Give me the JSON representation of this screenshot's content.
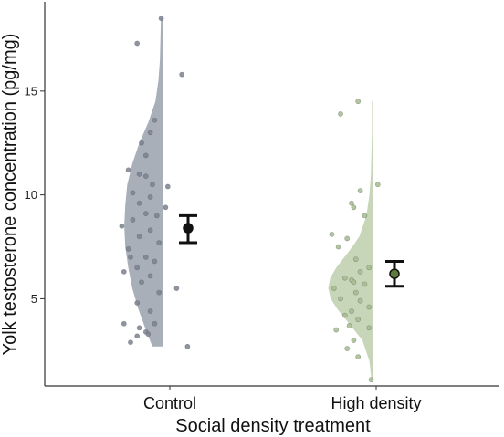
{
  "chart_data": {
    "type": "raincloud",
    "title": "",
    "xlabel": "Social density treatment",
    "ylabel": "Yolk testosterone concentration (pg/mg)",
    "ylim": [
      0.8,
      19.3
    ],
    "yticks": [
      5,
      10,
      15
    ],
    "grid": false,
    "legend": "none",
    "categories": [
      "Control",
      "High density"
    ],
    "groups": [
      {
        "category": "Control",
        "fill_color": "#a8afb8",
        "point_color": "#7a8290",
        "mean_color": "#111111",
        "mean": 8.4,
        "ci_low": 7.7,
        "ci_high": 9.0,
        "density_range": [
          2.7,
          18.5
        ],
        "density_profile": [
          [
            2.7,
            0.22
          ],
          [
            3.5,
            0.35
          ],
          [
            4.5,
            0.5
          ],
          [
            5.5,
            0.62
          ],
          [
            6.5,
            0.7
          ],
          [
            7.5,
            0.76
          ],
          [
            8.5,
            0.78
          ],
          [
            9.5,
            0.76
          ],
          [
            10.5,
            0.72
          ],
          [
            11.5,
            0.62
          ],
          [
            12.5,
            0.48
          ],
          [
            13.5,
            0.3
          ],
          [
            14.5,
            0.16
          ],
          [
            15.5,
            0.1
          ],
          [
            16.5,
            0.07
          ],
          [
            17.5,
            0.06
          ],
          [
            18.5,
            0.05
          ]
        ],
        "points": [
          [
            -0.05,
            18.5
          ],
          [
            -0.6,
            17.3
          ],
          [
            0.42,
            15.8
          ],
          [
            -0.2,
            13.6
          ],
          [
            -0.3,
            13.0
          ],
          [
            -0.5,
            12.5
          ],
          [
            -0.4,
            11.9
          ],
          [
            -0.8,
            11.2
          ],
          [
            -0.55,
            11.0
          ],
          [
            -0.4,
            10.9
          ],
          [
            -0.25,
            10.5
          ],
          [
            0.1,
            10.4
          ],
          [
            -0.7,
            10.1
          ],
          [
            -0.3,
            9.9
          ],
          [
            -0.55,
            9.6
          ],
          [
            0.05,
            9.4
          ],
          [
            -0.4,
            9.1
          ],
          [
            -0.15,
            9.0
          ],
          [
            -0.7,
            8.8
          ],
          [
            -0.95,
            8.5
          ],
          [
            -0.3,
            8.3
          ],
          [
            -0.55,
            8.0
          ],
          [
            -0.1,
            7.7
          ],
          [
            -0.8,
            7.4
          ],
          [
            -0.4,
            7.0
          ],
          [
            -0.75,
            7.0
          ],
          [
            -0.2,
            6.8
          ],
          [
            -0.6,
            6.5
          ],
          [
            -0.9,
            6.3
          ],
          [
            -0.3,
            6.1
          ],
          [
            -0.5,
            5.8
          ],
          [
            0.3,
            5.5
          ],
          [
            -0.1,
            5.3
          ],
          [
            -0.6,
            4.8
          ],
          [
            -0.3,
            4.4
          ],
          [
            -0.2,
            3.8
          ],
          [
            -0.9,
            3.8
          ],
          [
            -0.55,
            3.6
          ],
          [
            -0.4,
            3.4
          ],
          [
            -0.35,
            3.3
          ],
          [
            -0.6,
            3.2
          ],
          [
            -0.75,
            2.9
          ],
          [
            0.55,
            2.7
          ]
        ]
      },
      {
        "category": "High density",
        "fill_color": "#c7d6b8",
        "point_color": "#a3bc8e",
        "mean_color": "#5e7a3d",
        "mean": 6.2,
        "ci_low": 5.6,
        "ci_high": 6.8,
        "density_range": [
          1.1,
          14.5
        ],
        "density_profile": [
          [
            1.1,
            0.04
          ],
          [
            2.0,
            0.08
          ],
          [
            3.0,
            0.22
          ],
          [
            4.0,
            0.55
          ],
          [
            4.5,
            0.72
          ],
          [
            5.0,
            0.85
          ],
          [
            5.5,
            0.9
          ],
          [
            6.0,
            0.86
          ],
          [
            6.5,
            0.74
          ],
          [
            7.0,
            0.58
          ],
          [
            7.5,
            0.42
          ],
          [
            8.0,
            0.28
          ],
          [
            9.0,
            0.14
          ],
          [
            10.0,
            0.08
          ],
          [
            11.0,
            0.05
          ],
          [
            12.0,
            0.04
          ],
          [
            13.0,
            0.03
          ],
          [
            14.5,
            0.03
          ]
        ],
        "points": [
          [
            -0.35,
            14.5
          ],
          [
            -0.75,
            13.9
          ],
          [
            0.1,
            10.5
          ],
          [
            -0.3,
            10.2
          ],
          [
            -0.5,
            9.6
          ],
          [
            -0.45,
            9.4
          ],
          [
            -0.2,
            9.0
          ],
          [
            -0.95,
            8.1
          ],
          [
            -0.6,
            7.9
          ],
          [
            -0.8,
            7.5
          ],
          [
            -0.4,
            6.9
          ],
          [
            -0.1,
            6.5
          ],
          [
            -0.3,
            6.3
          ],
          [
            -0.65,
            6.0
          ],
          [
            -0.5,
            5.9
          ],
          [
            -0.45,
            5.8
          ],
          [
            -0.2,
            5.7
          ],
          [
            -0.9,
            5.5
          ],
          [
            -0.4,
            5.3
          ],
          [
            -0.75,
            5.0
          ],
          [
            -0.3,
            4.9
          ],
          [
            -0.1,
            4.6
          ],
          [
            -0.5,
            4.4
          ],
          [
            -0.65,
            4.2
          ],
          [
            -0.35,
            4.0
          ],
          [
            -0.55,
            3.7
          ],
          [
            -0.1,
            3.6
          ],
          [
            -0.85,
            3.5
          ],
          [
            -0.45,
            3.0
          ],
          [
            -0.6,
            2.6
          ],
          [
            -0.35,
            2.2
          ],
          [
            -0.05,
            1.1
          ]
        ]
      }
    ]
  }
}
